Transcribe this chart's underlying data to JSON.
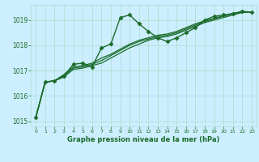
{
  "bg_color": "#cceeff",
  "grid_color": "#aaddcc",
  "line_color": "#1a6b2a",
  "title": "Graphe pression niveau de la mer (hPa)",
  "xlim": [
    -0.5,
    23.5
  ],
  "ylim": [
    1014.8,
    1019.6
  ],
  "yticks": [
    1015,
    1016,
    1017,
    1018,
    1019
  ],
  "xticks": [
    0,
    1,
    2,
    3,
    4,
    5,
    6,
    7,
    8,
    9,
    10,
    11,
    12,
    13,
    14,
    15,
    16,
    17,
    18,
    19,
    20,
    21,
    22,
    23
  ],
  "series": [
    {
      "x": [
        0,
        1,
        2,
        3,
        4,
        5,
        6,
        7,
        8,
        9,
        10,
        11,
        12,
        13,
        14,
        15,
        16,
        17,
        18,
        19,
        20,
        21,
        22,
        23
      ],
      "y": [
        1015.15,
        1016.55,
        1016.6,
        1016.8,
        1017.25,
        1017.3,
        1017.15,
        1017.9,
        1018.05,
        1019.1,
        1019.2,
        1018.85,
        1018.55,
        1018.3,
        1018.15,
        1018.3,
        1018.5,
        1018.7,
        1019.0,
        1019.15,
        1019.2,
        1019.25,
        1019.35,
        1019.3
      ],
      "marker": "D",
      "markersize": 2.5,
      "linewidth": 1.0
    },
    {
      "x": [
        0,
        1,
        2,
        3,
        4,
        5,
        6,
        7,
        8,
        9,
        10,
        11,
        12,
        13,
        14,
        15,
        16,
        17,
        18,
        19,
        20,
        21,
        22,
        23
      ],
      "y": [
        1015.15,
        1016.55,
        1016.6,
        1016.75,
        1017.05,
        1017.1,
        1017.2,
        1017.3,
        1017.5,
        1017.7,
        1017.9,
        1018.05,
        1018.2,
        1018.3,
        1018.35,
        1018.45,
        1018.6,
        1018.75,
        1018.9,
        1019.0,
        1019.1,
        1019.2,
        1019.3,
        1019.3
      ],
      "marker": null,
      "linewidth": 0.9
    },
    {
      "x": [
        0,
        1,
        2,
        3,
        4,
        5,
        6,
        7,
        8,
        9,
        10,
        11,
        12,
        13,
        14,
        15,
        16,
        17,
        18,
        19,
        20,
        21,
        22,
        23
      ],
      "y": [
        1015.15,
        1016.55,
        1016.6,
        1016.8,
        1017.1,
        1017.15,
        1017.25,
        1017.4,
        1017.6,
        1017.8,
        1018.0,
        1018.15,
        1018.25,
        1018.35,
        1018.4,
        1018.5,
        1018.65,
        1018.8,
        1018.95,
        1019.05,
        1019.15,
        1019.25,
        1019.3,
        1019.3
      ],
      "marker": null,
      "linewidth": 0.9
    },
    {
      "x": [
        0,
        1,
        2,
        3,
        4,
        5,
        6,
        7,
        8,
        9,
        10,
        11,
        12,
        13,
        14,
        15,
        16,
        17,
        18,
        19,
        20,
        21,
        22,
        23
      ],
      "y": [
        1015.15,
        1016.55,
        1016.6,
        1016.85,
        1017.15,
        1017.2,
        1017.3,
        1017.5,
        1017.65,
        1017.85,
        1018.05,
        1018.2,
        1018.3,
        1018.4,
        1018.45,
        1018.55,
        1018.7,
        1018.85,
        1018.97,
        1019.07,
        1019.17,
        1019.27,
        1019.32,
        1019.3
      ],
      "marker": null,
      "linewidth": 0.9
    }
  ],
  "title_fontsize": 6.0,
  "xlabel_fontsize": 4.5,
  "ylabel_fontsize": 5.5
}
